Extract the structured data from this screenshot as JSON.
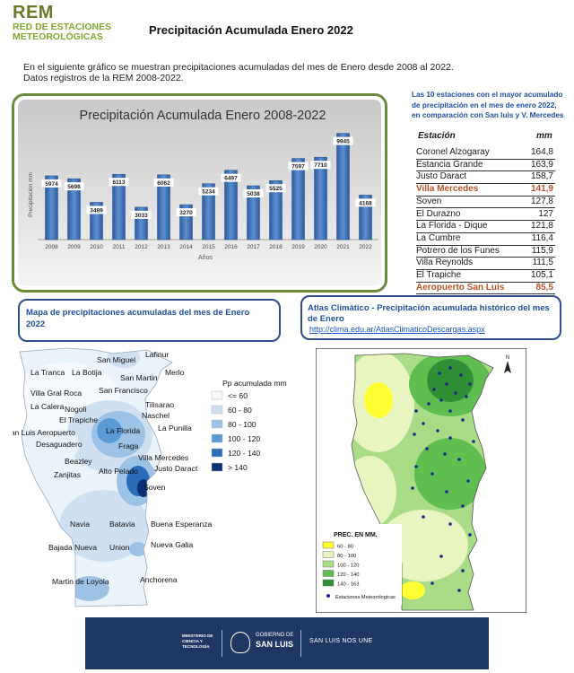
{
  "header": {
    "logo_acronym": "REM",
    "logo_line1": "RED DE ESTACIONES",
    "logo_line2": "METEOROLÓGICAS",
    "title": "Precipitación  Acumulada  Enero 2022"
  },
  "intro": {
    "line1": "En el siguiente gráfico se muestran precipitaciones acumuladas del mes de Enero desde 2008 al 2022.",
    "line2": "Datos registros de la REM 2008-2022."
  },
  "chart_data": {
    "type": "bar",
    "title": "Precipitación Acumulada Enero 2008-2022",
    "xlabel": "Años",
    "ylabel": "Precipitación mm",
    "categories": [
      "2008",
      "2009",
      "2010",
      "2011",
      "2012",
      "2013",
      "2014",
      "2015",
      "2016",
      "2017",
      "2018",
      "2019",
      "2020",
      "2021",
      "2022"
    ],
    "values": [
      5974,
      5698,
      3489,
      6113,
      3033,
      6062,
      3270,
      5234,
      6497,
      5038,
      5525,
      7597,
      7710,
      9945,
      4168
    ],
    "ylim": [
      0,
      10500
    ],
    "bar_color": "#3d6fb6",
    "grid": false
  },
  "stations": {
    "title_line1": "Las 10 estaciones con el mayor acumulado",
    "title_line2": "de precipitación  en el mes de enero 2022,",
    "title_line3": "en comparación  con San luis y V. Mercedes",
    "col_station": "Estación",
    "col_mm": "mm",
    "rows": [
      {
        "name": "Coronel Alzogaray",
        "mm": "164,8"
      },
      {
        "name": "Estancia Grande",
        "mm": "163,9"
      },
      {
        "name": "Justo Daract",
        "mm": "158,7"
      },
      {
        "name": "Villa Mercedes",
        "mm": "141,9"
      },
      {
        "name": "Soven",
        "mm": "127,8"
      },
      {
        "name": "El Durazno",
        "mm": "127"
      },
      {
        "name": "La Florida - Dique",
        "mm": "121,8"
      },
      {
        "name": "La Cumbre",
        "mm": "116,4"
      },
      {
        "name": "Potrero de los Funes",
        "mm": "115,9"
      },
      {
        "name": "Villa Reynolds",
        "mm": "111,5"
      },
      {
        "name": "El Trapiche",
        "mm": "105,1"
      },
      {
        "name": "Aeropuerto San Luis",
        "mm": "85,5"
      }
    ],
    "highlight_color": "#b2542a"
  },
  "map_left": {
    "title_line1": "Mapa de precipitaciones acumuladas del mes de Enero",
    "title_line2": "2022",
    "legend_title": "Pp acumulada mm",
    "legend": [
      {
        "label": "<= 60",
        "color": "#f3f7fc"
      },
      {
        "label": "60 - 80",
        "color": "#cfe0f2"
      },
      {
        "label": "80 - 100",
        "color": "#9cc3e6"
      },
      {
        "label": "100 - 120",
        "color": "#5b9bd5"
      },
      {
        "label": "120 - 140",
        "color": "#2a6cb8"
      },
      {
        "label": "> 140",
        "color": "#0b2f73"
      }
    ],
    "places": [
      "Lafinur",
      "San Miguel",
      "La Tranca",
      "La Botija",
      "San Martin",
      "Merlo",
      "Villa Gral Roca",
      "San Francisco",
      "La Calera",
      "Nogoli",
      "Tilisarao",
      "Naschel",
      "El Trapiche",
      "San Luis Aeropuerto",
      "La Florida",
      "La Punilla",
      "Desaguadero",
      "Fraga",
      "Villa Mercedes",
      "Beazley",
      "Justo Daract",
      "Alto Pelado",
      "Zanjitas",
      "Soven",
      "Navia",
      "Batavia",
      "Buena Esperanza",
      "Bajada Nueva",
      "Union",
      "Nueva Galia",
      "Martin de Loyola",
      "Anchorena"
    ]
  },
  "map_right": {
    "title_line1": "Atlas Climático - Precipitación acumulada histórico del mes",
    "title_line2": "de Enero",
    "link": "http://clima.edu.ar/AtlasClimaticoDescargas.aspx",
    "legend_title": "PREC. EN MM.",
    "legend": [
      {
        "label": "60 - 80",
        "color": "#ffff33"
      },
      {
        "label": "80 - 100",
        "color": "#e8f5c0"
      },
      {
        "label": "100 - 120",
        "color": "#a8dc86"
      },
      {
        "label": "120 - 140",
        "color": "#5fbe4f"
      },
      {
        "label": "140 - 163",
        "color": "#2e8f35"
      }
    ],
    "stations_label": "Estaciones Meteorologicas"
  },
  "footer": {
    "ministry": "MINISTERIO DE CIENCIA Y TECNOLOGÍA",
    "gov1": "GOBIERNO DE",
    "gov2": "SAN LUIS",
    "slogan": "SAN LUIS NOS UNE"
  }
}
